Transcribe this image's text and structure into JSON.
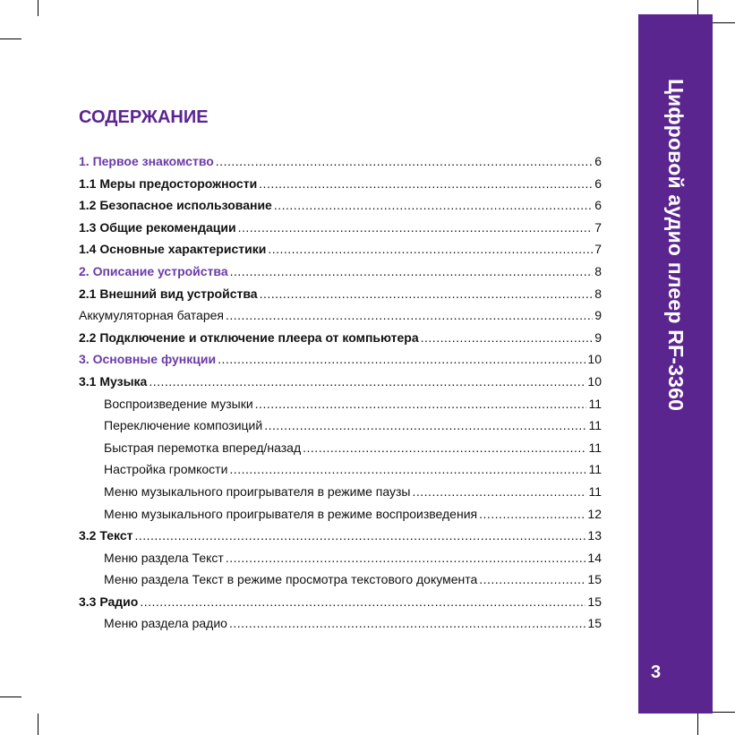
{
  "sidebar": {
    "title": "Цифровой аудио плеер RF-3360",
    "page_number": "3",
    "color": "#5b2590"
  },
  "heading": "СОДЕРЖАНИЕ",
  "toc": [
    {
      "text": "1. Первое знакомство",
      "page": "6",
      "style": "chapter"
    },
    {
      "text": "1.1 Меры предосторожности",
      "page": "6",
      "style": "bold"
    },
    {
      "text": "1.2 Безопасное использование",
      "page": "6",
      "style": "bold"
    },
    {
      "text": "1.3 Общие рекомендации",
      "page": "7",
      "style": "bold"
    },
    {
      "text": "1.4 Основные характеристики",
      "page": "7",
      "style": "bold"
    },
    {
      "text": "2. Описание устройства",
      "page": "8",
      "style": "chapter"
    },
    {
      "text": "2.1 Внешний вид устройства",
      "page": "8",
      "style": "bold"
    },
    {
      "text": "Аккумуляторная батарея",
      "page": "9",
      "style": "normal"
    },
    {
      "text": "2.2 Подключение и отключение плеера от компьютера",
      "page": "9",
      "style": "bold"
    },
    {
      "text": "3. Основные функции",
      "page": "10",
      "style": "chapter"
    },
    {
      "text": "3.1 Музыка",
      "page": "10",
      "style": "bold"
    },
    {
      "text": "Воспроизведение музыки",
      "page": "11",
      "style": "indent"
    },
    {
      "text": "Переключение композиций",
      "page": "11",
      "style": "indent"
    },
    {
      "text": "Быстрая перемотка вперед/назад",
      "page": "11",
      "style": "indent"
    },
    {
      "text": "Настройка громкости",
      "page": "11",
      "style": "indent"
    },
    {
      "text": "Меню музыкального проигрывателя в режиме паузы",
      "page": "11",
      "style": "indent"
    },
    {
      "text": "Меню музыкального проигрывателя в режиме воспроизведения",
      "page": "12",
      "style": "indent"
    },
    {
      "text": "3.2 Текст",
      "page": "13",
      "style": "bold"
    },
    {
      "text": "Меню раздела Текст",
      "page": "14",
      "style": "indent"
    },
    {
      "text": "Меню раздела Текст в режиме просмотра текстового документа",
      "page": "15",
      "style": "indent"
    },
    {
      "text": "3.3 Радио",
      "page": "15",
      "style": "bold"
    },
    {
      "text": "Меню раздела радио",
      "page": "15",
      "style": "indent"
    }
  ]
}
